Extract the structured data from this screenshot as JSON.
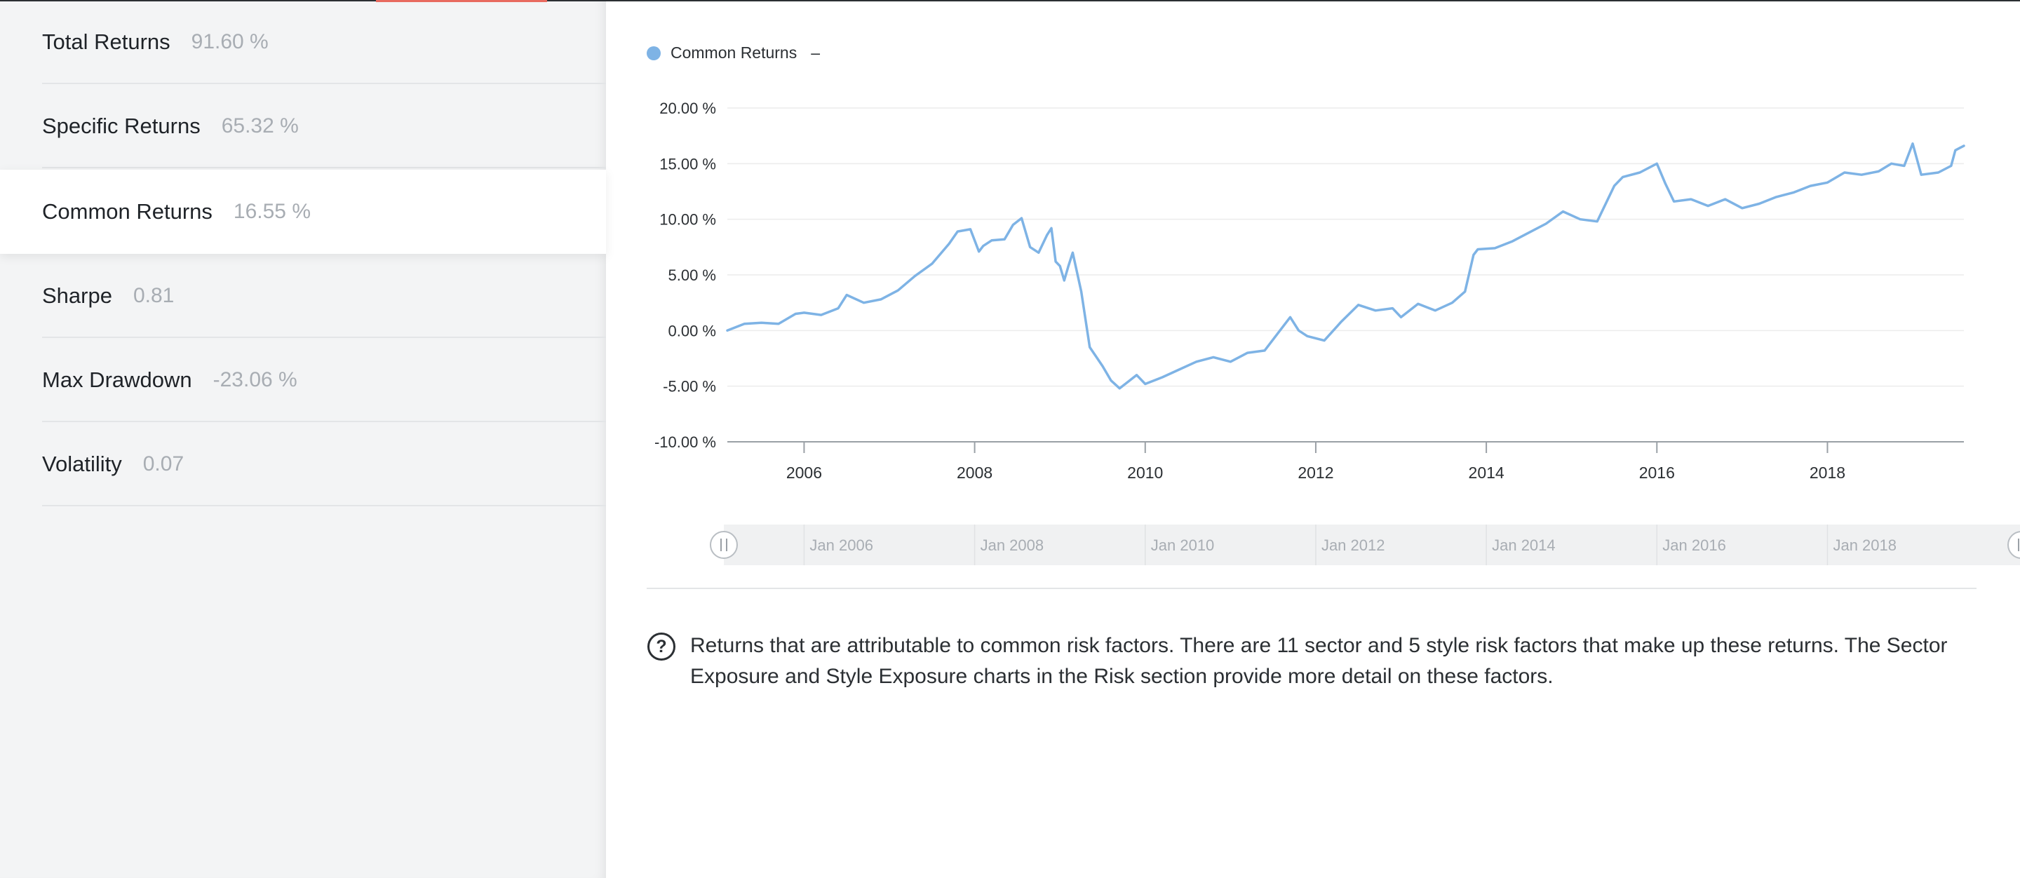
{
  "sidebar": {
    "metrics": [
      {
        "label": "Total Returns",
        "value": "91.60 %"
      },
      {
        "label": "Specific Returns",
        "value": "65.32 %"
      },
      {
        "label": "Common Returns",
        "value": "16.55 %"
      },
      {
        "label": "Sharpe",
        "value": "0.81"
      },
      {
        "label": "Max Drawdown",
        "value": "-23.06 %"
      },
      {
        "label": "Volatility",
        "value": "0.07"
      }
    ],
    "active_index": 2
  },
  "legend": {
    "label": "Common Returns",
    "value": "–"
  },
  "colors": {
    "series": "#7eb3e5",
    "accent": "#e86a5f"
  },
  "description": "Returns that are attributable to common risk factors. There are 11 sector and 5 style risk factors that make up these returns. The Sector Exposure and Style Exposure charts in the Risk section provide more detail on these factors.",
  "navigator": {
    "labels": [
      "Jan 2006",
      "Jan 2008",
      "Jan 2010",
      "Jan 2012",
      "Jan 2014",
      "Jan 2016",
      "Jan 2018"
    ]
  },
  "chart_data": {
    "type": "line",
    "title": "",
    "xlabel": "",
    "ylabel": "",
    "xlim": [
      2005.1,
      2019.6
    ],
    "ylim": [
      -10,
      20
    ],
    "y_ticks": [
      -10,
      -5,
      0,
      5,
      10,
      15,
      20
    ],
    "y_tick_labels": [
      "-10.00 %",
      "-5.00 %",
      "0.00 %",
      "5.00 %",
      "10.00 %",
      "15.00 %",
      "20.00 %"
    ],
    "x_ticks": [
      2006,
      2008,
      2010,
      2012,
      2014,
      2016,
      2018
    ],
    "x_tick_labels": [
      "2006",
      "2008",
      "2010",
      "2012",
      "2014",
      "2016",
      "2018"
    ],
    "grid": true,
    "legend": "top-left",
    "series": [
      {
        "name": "Common Returns",
        "x": [
          2005.1,
          2005.3,
          2005.5,
          2005.7,
          2005.9,
          2006.0,
          2006.2,
          2006.4,
          2006.5,
          2006.7,
          2006.9,
          2007.1,
          2007.3,
          2007.5,
          2007.7,
          2007.8,
          2007.95,
          2008.05,
          2008.1,
          2008.2,
          2008.35,
          2008.45,
          2008.55,
          2008.65,
          2008.75,
          2008.85,
          2008.9,
          2008.95,
          2009.0,
          2009.05,
          2009.1,
          2009.15,
          2009.25,
          2009.35,
          2009.5,
          2009.6,
          2009.7,
          2009.8,
          2009.9,
          2010.0,
          2010.2,
          2010.4,
          2010.6,
          2010.8,
          2011.0,
          2011.2,
          2011.4,
          2011.6,
          2011.7,
          2011.8,
          2011.9,
          2012.1,
          2012.3,
          2012.5,
          2012.7,
          2012.9,
          2013.0,
          2013.2,
          2013.4,
          2013.6,
          2013.75,
          2013.85,
          2013.9,
          2014.1,
          2014.3,
          2014.5,
          2014.7,
          2014.9,
          2015.1,
          2015.3,
          2015.5,
          2015.6,
          2015.8,
          2016.0,
          2016.1,
          2016.2,
          2016.4,
          2016.6,
          2016.8,
          2017.0,
          2017.2,
          2017.4,
          2017.6,
          2017.8,
          2018.0,
          2018.2,
          2018.4,
          2018.6,
          2018.75,
          2018.9,
          2019.0,
          2019.1,
          2019.3,
          2019.45,
          2019.5,
          2019.6
        ],
        "y": [
          0.0,
          0.6,
          0.7,
          0.6,
          1.5,
          1.6,
          1.4,
          2.0,
          3.2,
          2.5,
          2.8,
          3.6,
          4.9,
          6.0,
          7.8,
          8.9,
          9.1,
          7.1,
          7.6,
          8.1,
          8.2,
          9.5,
          10.1,
          7.5,
          7.0,
          8.6,
          9.2,
          6.2,
          5.8,
          4.5,
          5.8,
          7.0,
          3.5,
          -1.5,
          -3.2,
          -4.5,
          -5.2,
          -4.6,
          -4.0,
          -4.8,
          -4.2,
          -3.5,
          -2.8,
          -2.4,
          -2.8,
          -2.0,
          -1.8,
          0.2,
          1.2,
          0.0,
          -0.5,
          -0.9,
          0.8,
          2.3,
          1.8,
          2.0,
          1.2,
          2.4,
          1.8,
          2.5,
          3.5,
          6.8,
          7.3,
          7.4,
          8.0,
          8.8,
          9.6,
          10.7,
          10.0,
          9.8,
          13.0,
          13.8,
          14.2,
          15.0,
          13.2,
          11.6,
          11.8,
          11.2,
          11.8,
          11.0,
          11.4,
          12.0,
          12.4,
          13.0,
          13.3,
          14.2,
          14.0,
          14.3,
          15.0,
          14.8,
          16.8,
          14.0,
          14.2,
          14.8,
          16.2,
          16.6
        ]
      }
    ]
  }
}
